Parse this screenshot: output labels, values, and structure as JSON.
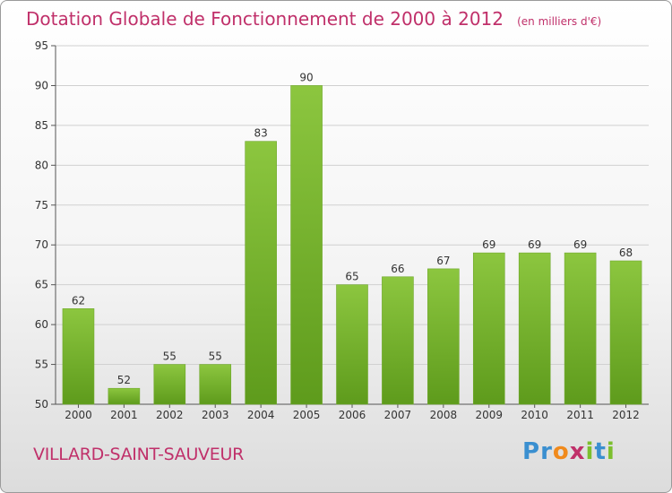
{
  "chart_title": "Dotation Globale de Fonctionnement de 2000 à 2012",
  "chart_subtitle": "(en milliers d'€)",
  "commune": "VILLARD-SAINT-SAUVEUR",
  "logo": {
    "text": "Proxiti",
    "letters": [
      {
        "ch": "P",
        "color": "#3a8fd0"
      },
      {
        "ch": "r",
        "color": "#3a8fd0"
      },
      {
        "ch": "o",
        "color": "#f08a1c"
      },
      {
        "ch": "x",
        "color": "#c0306a"
      },
      {
        "ch": "i",
        "color": "#7cbf2e"
      },
      {
        "ch": "t",
        "color": "#3a8fd0"
      },
      {
        "ch": "i",
        "color": "#7cbf2e"
      }
    ]
  },
  "chart_data": {
    "type": "bar",
    "title": "Dotation Globale de Fonctionnement de 2000 à 2012",
    "subtitle": "(en milliers d'€)",
    "xlabel": "",
    "ylabel": "",
    "categories": [
      "2000",
      "2001",
      "2002",
      "2003",
      "2004",
      "2005",
      "2006",
      "2007",
      "2008",
      "2009",
      "2010",
      "2011",
      "2012"
    ],
    "values": [
      62,
      52,
      55,
      55,
      83,
      90,
      65,
      66,
      67,
      69,
      69,
      69,
      68
    ],
    "ylim": [
      50,
      95
    ],
    "yticks": [
      50,
      55,
      60,
      65,
      70,
      75,
      80,
      85,
      90,
      95
    ],
    "grid": true,
    "bar_color": "#8cc63f",
    "bar_color_dark": "#5e9b1c",
    "label_color": "#333333",
    "grid_color": "#d0d0d0"
  }
}
